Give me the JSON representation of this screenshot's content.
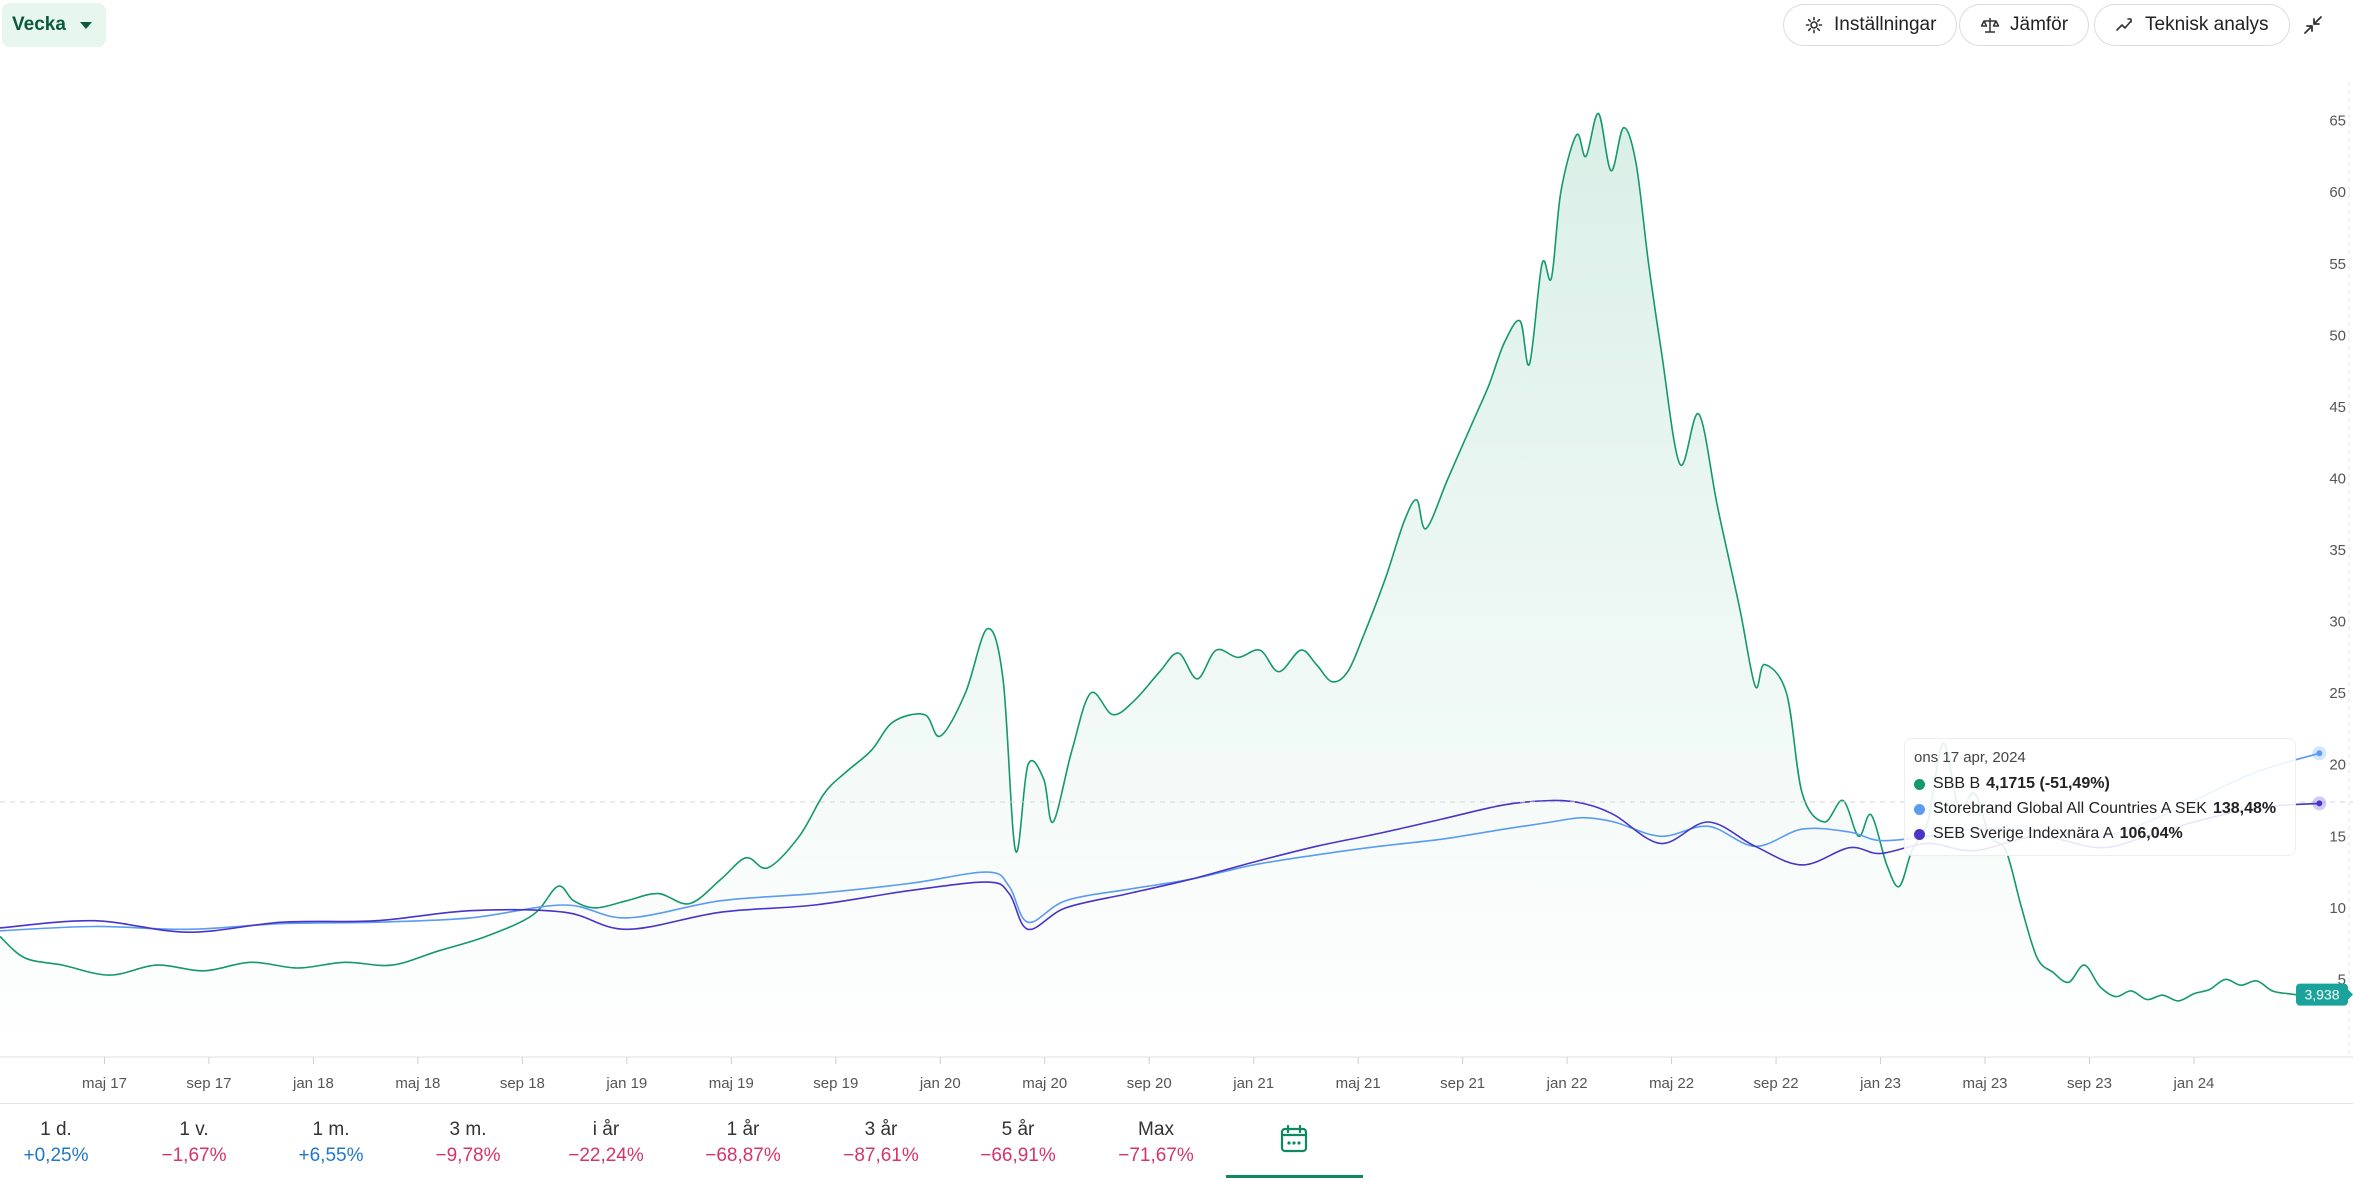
{
  "toolbar": {
    "period_select": "Vecka",
    "settings_label": "Inställningar",
    "compare_label": "Jämför",
    "analysis_label": "Teknisk analys"
  },
  "periods": [
    {
      "label": "1 d.",
      "change": "+0,25%",
      "dir": "up"
    },
    {
      "label": "1 v.",
      "change": "−1,67%",
      "dir": "down"
    },
    {
      "label": "1 m.",
      "change": "+6,55%",
      "dir": "up"
    },
    {
      "label": "3 m.",
      "change": "−9,78%",
      "dir": "down"
    },
    {
      "label": "i år",
      "change": "−22,24%",
      "dir": "down"
    },
    {
      "label": "1 år",
      "change": "−68,87%",
      "dir": "down"
    },
    {
      "label": "3 år",
      "change": "−87,61%",
      "dir": "down"
    },
    {
      "label": "5 år",
      "change": "−66,91%",
      "dir": "down"
    },
    {
      "label": "Max",
      "change": "−71,67%",
      "dir": "down"
    }
  ],
  "tooltip": {
    "date": "ons 17 apr, 2024",
    "rows": [
      {
        "name": "SBB B",
        "value": "4,1715 (-51,49%)",
        "color": "#14996a"
      },
      {
        "name": "Storebrand Global All Countries A SEK",
        "value": "138,48%",
        "color": "#5b9bf0"
      },
      {
        "name": "SEB Sverige Indexnära A",
        "value": "106,04%",
        "color": "#4834c8"
      }
    ]
  },
  "colors": {
    "up": "#1f78c8",
    "down": "#d6336c",
    "accent": "#0e8a63",
    "last_badge": "#1aa39a"
  },
  "chart_data": {
    "type": "line",
    "x_ticks": [
      "maj 17",
      "sep 17",
      "jan 18",
      "maj 18",
      "sep 18",
      "jan 19",
      "maj 19",
      "sep 19",
      "jan 20",
      "maj 20",
      "sep 20",
      "jan 21",
      "maj 21",
      "sep 21",
      "jan 22",
      "maj 22",
      "sep 22",
      "jan 23",
      "maj 23",
      "sep 23",
      "jan 24"
    ],
    "y_ticks": [
      5,
      10,
      15,
      20,
      25,
      30,
      35,
      40,
      45,
      50,
      55,
      60,
      65
    ],
    "ylim": [
      0,
      67
    ],
    "xlim": [
      2017.0,
      2024.45
    ],
    "grid": false,
    "last_value_label": "3,938",
    "series": [
      {
        "name": "SBB B",
        "color": "#14996a",
        "fill": true,
        "points": [
          [
            2017.0,
            8.0
          ],
          [
            2017.08,
            6.5
          ],
          [
            2017.2,
            6.0
          ],
          [
            2017.35,
            5.3
          ],
          [
            2017.5,
            6.0
          ],
          [
            2017.65,
            5.6
          ],
          [
            2017.8,
            6.2
          ],
          [
            2017.95,
            5.8
          ],
          [
            2018.1,
            6.2
          ],
          [
            2018.25,
            6.0
          ],
          [
            2018.4,
            7.0
          ],
          [
            2018.55,
            8.0
          ],
          [
            2018.7,
            9.5
          ],
          [
            2018.78,
            11.5
          ],
          [
            2018.83,
            10.5
          ],
          [
            2018.9,
            10.0
          ],
          [
            2019.0,
            10.5
          ],
          [
            2019.1,
            11.0
          ],
          [
            2019.2,
            10.3
          ],
          [
            2019.3,
            12.0
          ],
          [
            2019.38,
            13.5
          ],
          [
            2019.45,
            12.8
          ],
          [
            2019.55,
            15.0
          ],
          [
            2019.63,
            18.0
          ],
          [
            2019.7,
            19.5
          ],
          [
            2019.78,
            21.0
          ],
          [
            2019.85,
            23.0
          ],
          [
            2019.95,
            23.5
          ],
          [
            2020.0,
            22.0
          ],
          [
            2020.08,
            25.0
          ],
          [
            2020.15,
            29.5
          ],
          [
            2020.2,
            26.0
          ],
          [
            2020.24,
            14.0
          ],
          [
            2020.28,
            20.0
          ],
          [
            2020.33,
            19.0
          ],
          [
            2020.36,
            16.0
          ],
          [
            2020.42,
            21.0
          ],
          [
            2020.48,
            25.0
          ],
          [
            2020.55,
            23.5
          ],
          [
            2020.62,
            24.5
          ],
          [
            2020.7,
            26.5
          ],
          [
            2020.76,
            27.8
          ],
          [
            2020.82,
            26.0
          ],
          [
            2020.88,
            28.0
          ],
          [
            2020.95,
            27.5
          ],
          [
            2021.02,
            28.0
          ],
          [
            2021.08,
            26.5
          ],
          [
            2021.15,
            28.0
          ],
          [
            2021.2,
            27.0
          ],
          [
            2021.25,
            25.8
          ],
          [
            2021.3,
            26.5
          ],
          [
            2021.35,
            29.0
          ],
          [
            2021.42,
            33.0
          ],
          [
            2021.48,
            37.0
          ],
          [
            2021.52,
            38.5
          ],
          [
            2021.55,
            36.5
          ],
          [
            2021.62,
            40.0
          ],
          [
            2021.7,
            44.0
          ],
          [
            2021.75,
            46.5
          ],
          [
            2021.8,
            49.5
          ],
          [
            2021.85,
            51.0
          ],
          [
            2021.88,
            48.0
          ],
          [
            2021.92,
            55.0
          ],
          [
            2021.95,
            54.0
          ],
          [
            2021.98,
            60.0
          ],
          [
            2022.03,
            64.0
          ],
          [
            2022.06,
            62.5
          ],
          [
            2022.1,
            65.5
          ],
          [
            2022.14,
            61.5
          ],
          [
            2022.18,
            64.5
          ],
          [
            2022.22,
            62.0
          ],
          [
            2022.26,
            55.0
          ],
          [
            2022.3,
            49.0
          ],
          [
            2022.36,
            41.0
          ],
          [
            2022.42,
            44.5
          ],
          [
            2022.48,
            38.0
          ],
          [
            2022.55,
            31.0
          ],
          [
            2022.6,
            25.5
          ],
          [
            2022.63,
            27.0
          ],
          [
            2022.7,
            25.0
          ],
          [
            2022.75,
            18.0
          ],
          [
            2022.82,
            16.0
          ],
          [
            2022.88,
            17.5
          ],
          [
            2022.93,
            15.0
          ],
          [
            2022.97,
            16.5
          ],
          [
            2023.02,
            13.0
          ],
          [
            2023.06,
            11.5
          ],
          [
            2023.1,
            14.0
          ],
          [
            2023.15,
            16.0
          ],
          [
            2023.2,
            21.5
          ],
          [
            2023.25,
            17.0
          ],
          [
            2023.3,
            18.0
          ],
          [
            2023.35,
            15.0
          ],
          [
            2023.4,
            14.0
          ],
          [
            2023.45,
            10.0
          ],
          [
            2023.5,
            6.5
          ],
          [
            2023.55,
            5.5
          ],
          [
            2023.6,
            4.8
          ],
          [
            2023.65,
            6.0
          ],
          [
            2023.7,
            4.5
          ],
          [
            2023.75,
            3.8
          ],
          [
            2023.8,
            4.2
          ],
          [
            2023.85,
            3.6
          ],
          [
            2023.9,
            3.9
          ],
          [
            2023.95,
            3.5
          ],
          [
            2024.0,
            4.0
          ],
          [
            2024.05,
            4.3
          ],
          [
            2024.1,
            5.0
          ],
          [
            2024.15,
            4.6
          ],
          [
            2024.2,
            4.9
          ],
          [
            2024.25,
            4.2
          ],
          [
            2024.3,
            4.0
          ],
          [
            2024.35,
            3.9
          ],
          [
            2024.4,
            3.938
          ]
        ]
      },
      {
        "name": "Storebrand Global All Countries A SEK",
        "color": "#5b9bf0",
        "fill": false,
        "points": [
          [
            2017.0,
            8.4
          ],
          [
            2017.3,
            8.7
          ],
          [
            2017.6,
            8.5
          ],
          [
            2017.9,
            8.9
          ],
          [
            2018.2,
            9.0
          ],
          [
            2018.5,
            9.3
          ],
          [
            2018.8,
            10.2
          ],
          [
            2019.0,
            9.3
          ],
          [
            2019.3,
            10.5
          ],
          [
            2019.6,
            11.0
          ],
          [
            2019.9,
            11.7
          ],
          [
            2020.15,
            12.5
          ],
          [
            2020.22,
            11.5
          ],
          [
            2020.28,
            9.0
          ],
          [
            2020.4,
            10.5
          ],
          [
            2020.6,
            11.3
          ],
          [
            2020.8,
            12.0
          ],
          [
            2021.0,
            13.0
          ],
          [
            2021.2,
            13.7
          ],
          [
            2021.4,
            14.3
          ],
          [
            2021.6,
            14.8
          ],
          [
            2021.8,
            15.5
          ],
          [
            2021.95,
            16.0
          ],
          [
            2022.05,
            16.3
          ],
          [
            2022.15,
            16.0
          ],
          [
            2022.3,
            15.0
          ],
          [
            2022.45,
            15.7
          ],
          [
            2022.6,
            14.3
          ],
          [
            2022.75,
            15.5
          ],
          [
            2022.9,
            15.3
          ],
          [
            2023.0,
            14.7
          ],
          [
            2023.15,
            15.0
          ],
          [
            2023.3,
            15.5
          ],
          [
            2023.5,
            15.4
          ],
          [
            2023.7,
            15.0
          ],
          [
            2023.85,
            16.0
          ],
          [
            2024.0,
            17.5
          ],
          [
            2024.2,
            19.5
          ],
          [
            2024.4,
            20.8
          ]
        ]
      },
      {
        "name": "SEB Sverige Indexnära A",
        "color": "#4834c8",
        "fill": false,
        "points": [
          [
            2017.0,
            8.6
          ],
          [
            2017.3,
            9.1
          ],
          [
            2017.6,
            8.3
          ],
          [
            2017.9,
            9.0
          ],
          [
            2018.2,
            9.1
          ],
          [
            2018.5,
            9.8
          ],
          [
            2018.8,
            9.7
          ],
          [
            2019.0,
            8.5
          ],
          [
            2019.3,
            9.7
          ],
          [
            2019.6,
            10.2
          ],
          [
            2019.9,
            11.2
          ],
          [
            2020.15,
            11.8
          ],
          [
            2020.22,
            11.0
          ],
          [
            2020.28,
            8.5
          ],
          [
            2020.4,
            10.0
          ],
          [
            2020.6,
            11.0
          ],
          [
            2020.8,
            12.0
          ],
          [
            2021.0,
            13.2
          ],
          [
            2021.2,
            14.3
          ],
          [
            2021.4,
            15.2
          ],
          [
            2021.6,
            16.2
          ],
          [
            2021.8,
            17.2
          ],
          [
            2021.95,
            17.5
          ],
          [
            2022.05,
            17.3
          ],
          [
            2022.15,
            16.5
          ],
          [
            2022.3,
            14.5
          ],
          [
            2022.45,
            16.0
          ],
          [
            2022.6,
            14.3
          ],
          [
            2022.75,
            13.0
          ],
          [
            2022.9,
            14.2
          ],
          [
            2023.0,
            13.8
          ],
          [
            2023.15,
            14.5
          ],
          [
            2023.3,
            14.0
          ],
          [
            2023.5,
            15.0
          ],
          [
            2023.7,
            14.2
          ],
          [
            2023.85,
            15.0
          ],
          [
            2024.0,
            16.0
          ],
          [
            2024.2,
            17.0
          ],
          [
            2024.4,
            17.3
          ]
        ]
      }
    ]
  }
}
